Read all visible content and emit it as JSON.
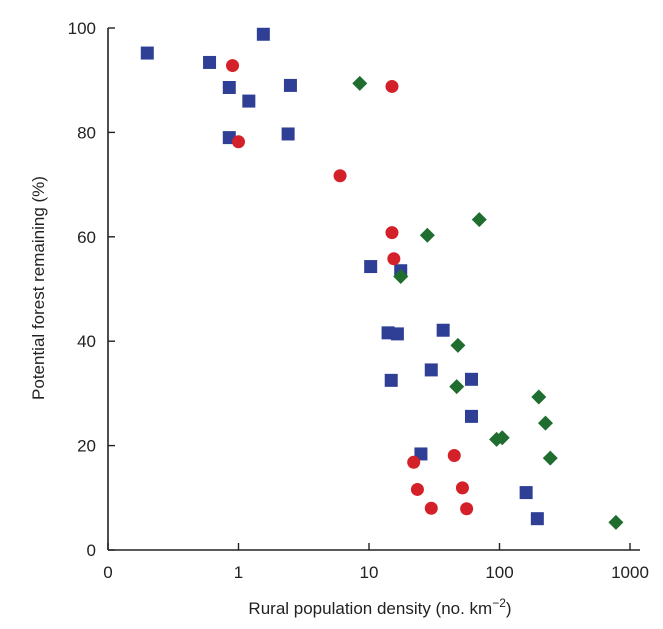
{
  "chart_data": {
    "type": "scatter",
    "title": "",
    "xlabel": "Rural population density (no. km",
    "xlabel_sup": "−2",
    "xlabel_close": ")",
    "ylabel": "Potential forest remaining (%)",
    "x_scale": "log",
    "xlim": [
      0.1,
      1000
    ],
    "ylim": [
      0,
      100
    ],
    "x_ticks": [
      {
        "value": 0.1,
        "label": "0"
      },
      {
        "value": 1,
        "label": "1"
      },
      {
        "value": 10,
        "label": "10"
      },
      {
        "value": 100,
        "label": "100"
      },
      {
        "value": 1000,
        "label": "1000"
      }
    ],
    "y_ticks": [
      {
        "value": 0,
        "label": "0"
      },
      {
        "value": 20,
        "label": "20"
      },
      {
        "value": 40,
        "label": "40"
      },
      {
        "value": 60,
        "label": "60"
      },
      {
        "value": 80,
        "label": "80"
      },
      {
        "value": 100,
        "label": "100"
      }
    ],
    "grid": false,
    "legend": "none",
    "series": [
      {
        "marker": "square",
        "color": "#2e3f95",
        "points": [
          [
            0.2,
            95.2
          ],
          [
            0.6,
            93.4
          ],
          [
            0.85,
            88.6
          ],
          [
            1.55,
            98.8
          ],
          [
            1.2,
            86.0
          ],
          [
            2.5,
            89.0
          ],
          [
            0.85,
            79.0
          ],
          [
            2.4,
            79.7
          ],
          [
            10.3,
            54.3
          ],
          [
            17.5,
            53.5
          ],
          [
            14.0,
            41.6
          ],
          [
            16.5,
            41.4
          ],
          [
            37.0,
            42.1
          ],
          [
            14.8,
            32.5
          ],
          [
            30.0,
            34.5
          ],
          [
            61.0,
            32.7
          ],
          [
            61.0,
            25.6
          ],
          [
            25.0,
            18.4
          ],
          [
            160.0,
            11.0
          ],
          [
            195.0,
            6.0
          ]
        ]
      },
      {
        "marker": "circle",
        "color": "#d42028",
        "points": [
          [
            0.9,
            92.8
          ],
          [
            15.0,
            88.8
          ],
          [
            1.0,
            78.2
          ],
          [
            6.0,
            71.7
          ],
          [
            15.0,
            60.8
          ],
          [
            15.5,
            55.8
          ],
          [
            22.0,
            16.8
          ],
          [
            23.5,
            11.6
          ],
          [
            30.0,
            8.0
          ],
          [
            45.0,
            18.1
          ],
          [
            52.0,
            11.9
          ],
          [
            56.0,
            7.9
          ]
        ]
      },
      {
        "marker": "diamond",
        "color": "#1f6e2f",
        "points": [
          [
            8.5,
            89.4
          ],
          [
            17.5,
            52.4
          ],
          [
            28.0,
            60.3
          ],
          [
            70.0,
            63.3
          ],
          [
            48.0,
            39.2
          ],
          [
            47.0,
            31.3
          ],
          [
            95.0,
            21.2
          ],
          [
            105.0,
            21.5
          ],
          [
            200.0,
            29.3
          ],
          [
            225.0,
            24.3
          ],
          [
            245.0,
            17.6
          ],
          [
            780.0,
            5.3
          ]
        ]
      }
    ]
  }
}
